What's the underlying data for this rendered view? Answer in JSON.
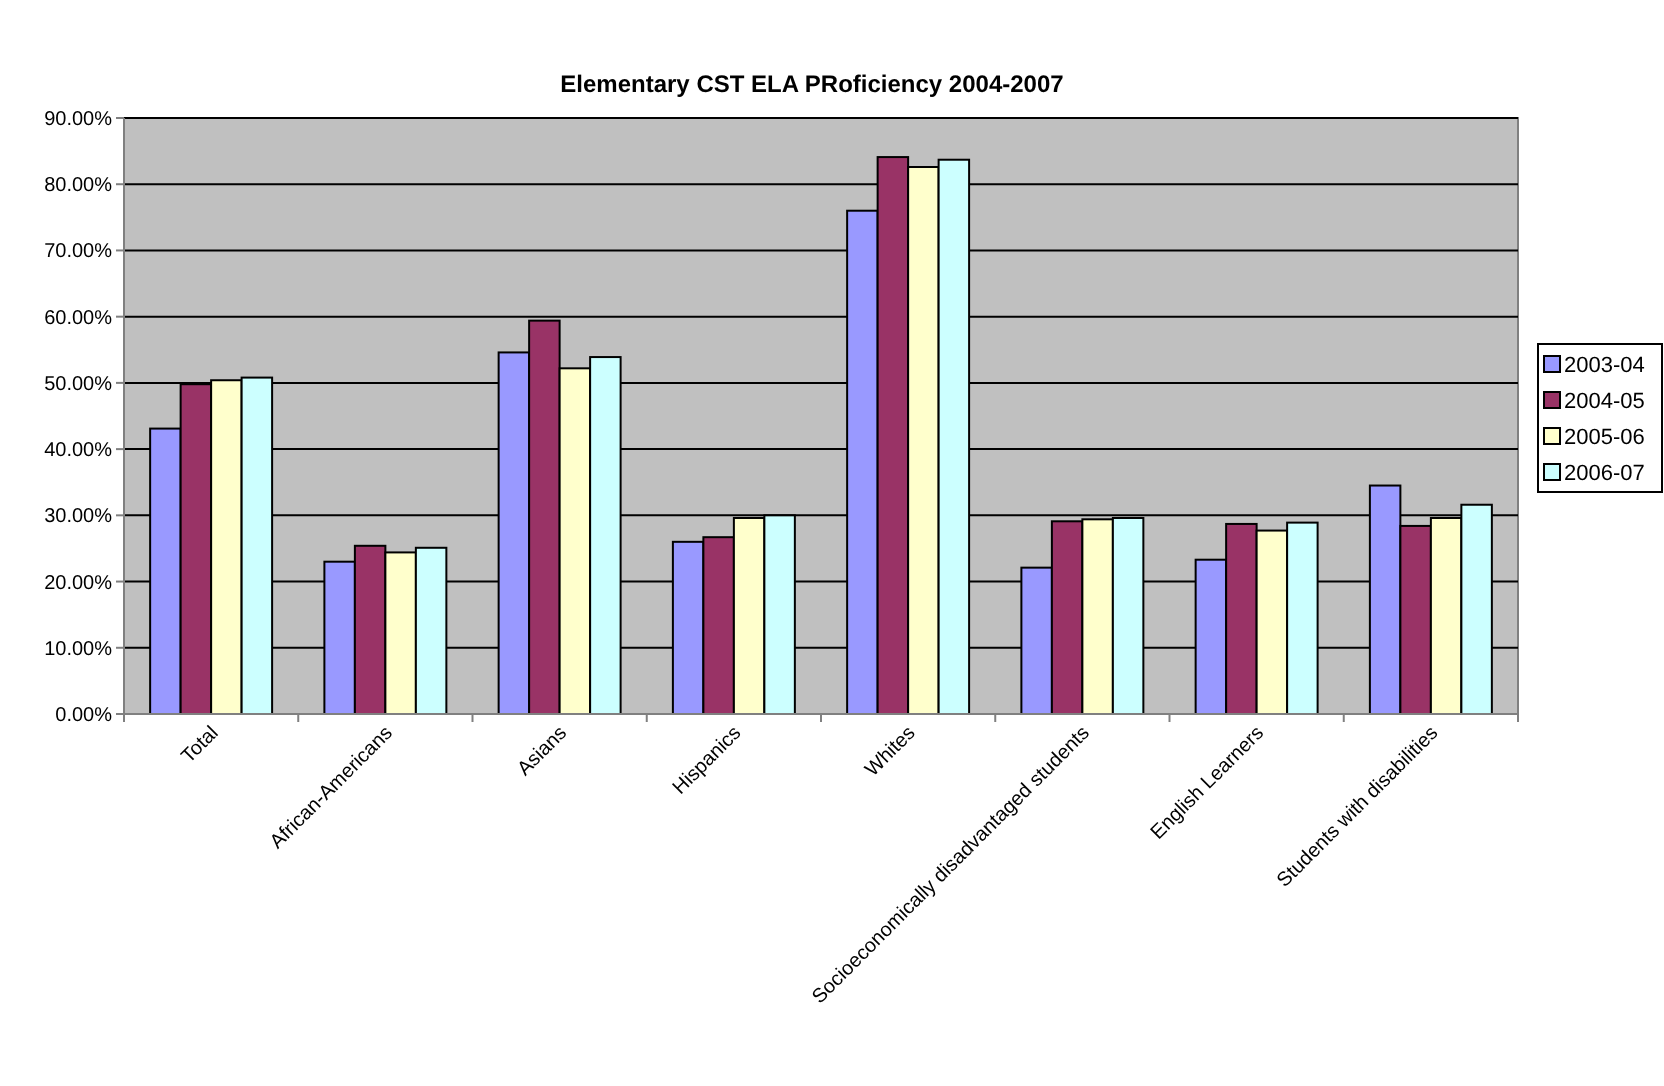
{
  "chart_data": {
    "type": "bar",
    "title": "Elementary CST ELA PRoficiency 2004-2007",
    "categories": [
      "Total",
      "African-Americans",
      "Asians",
      "Hispanics",
      "Whites",
      "Socioeconomically disadvantaged students",
      "English Learners",
      "Students with disabilities"
    ],
    "series": [
      {
        "name": "2003-04",
        "color": "#9999ff",
        "values": [
          43.1,
          23.0,
          54.6,
          26.0,
          76.0,
          22.1,
          23.3,
          34.5
        ]
      },
      {
        "name": "2004-05",
        "color": "#993366",
        "values": [
          49.8,
          25.4,
          59.4,
          26.7,
          84.1,
          29.1,
          28.7,
          28.4
        ]
      },
      {
        "name": "2005-06",
        "color": "#ffffcc",
        "values": [
          50.4,
          24.4,
          52.2,
          29.6,
          82.6,
          29.4,
          27.7,
          29.6
        ]
      },
      {
        "name": "2006-07",
        "color": "#ccffff",
        "values": [
          50.8,
          25.1,
          53.9,
          30.0,
          83.7,
          29.6,
          28.9,
          31.6
        ]
      }
    ],
    "ylim": [
      0,
      90
    ],
    "yticks": [
      {
        "value": 0,
        "label": "0.00%"
      },
      {
        "value": 10,
        "label": "10.00%"
      },
      {
        "value": 20,
        "label": "20.00%"
      },
      {
        "value": 30,
        "label": "30.00%"
      },
      {
        "value": 40,
        "label": "40.00%"
      },
      {
        "value": 50,
        "label": "50.00%"
      },
      {
        "value": 60,
        "label": "60.00%"
      },
      {
        "value": 70,
        "label": "70.00%"
      },
      {
        "value": 80,
        "label": "80.00%"
      },
      {
        "value": 90,
        "label": "90.00%"
      }
    ],
    "grid": "y",
    "legend": "right"
  }
}
